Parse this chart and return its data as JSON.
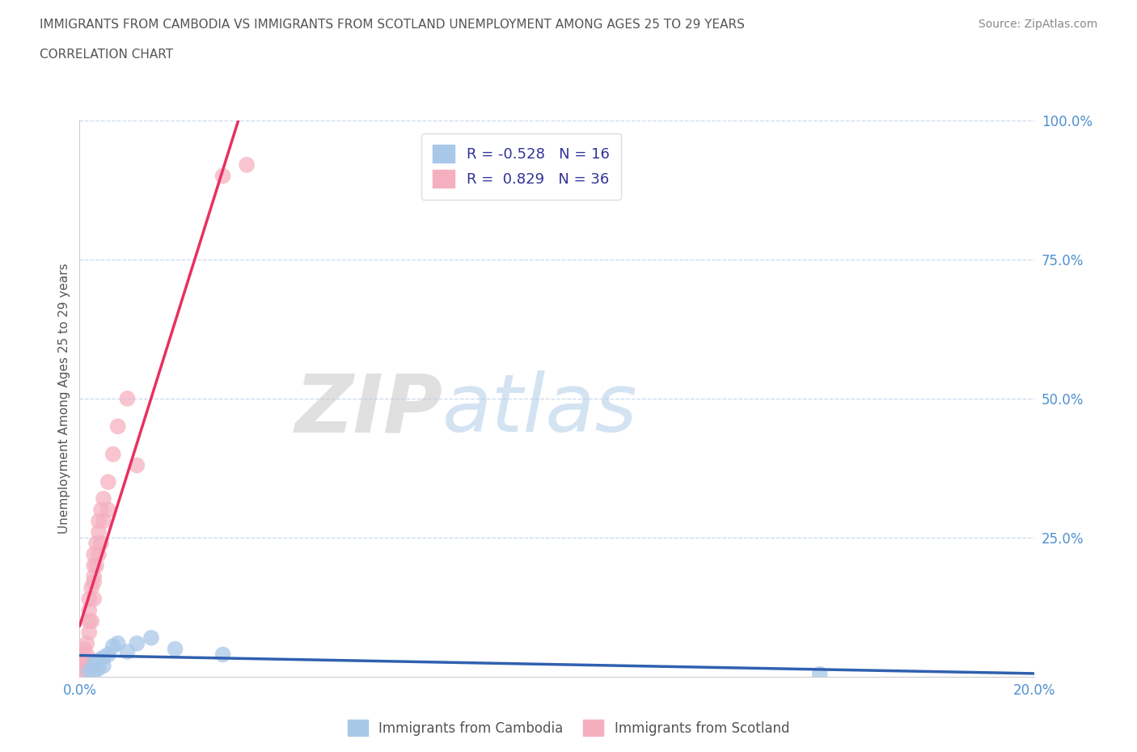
{
  "title_line1": "IMMIGRANTS FROM CAMBODIA VS IMMIGRANTS FROM SCOTLAND UNEMPLOYMENT AMONG AGES 25 TO 29 YEARS",
  "title_line2": "CORRELATION CHART",
  "source": "Source: ZipAtlas.com",
  "ylabel_label": "Unemployment Among Ages 25 to 29 years",
  "xlim": [
    0.0,
    0.2
  ],
  "ylim": [
    0.0,
    1.0
  ],
  "watermark_zip": "ZIP",
  "watermark_atlas": "atlas",
  "cambodia_color": "#a8c8e8",
  "scotland_color": "#f5b0c0",
  "cambodia_line_color": "#3060b0",
  "scotland_line_color": "#e83060",
  "title_color": "#444444",
  "right_axis_color": "#5090d0",
  "bottom_axis_color": "#5090d0",
  "grid_color": "#c8d8ec",
  "legend_text_color": "#333399",
  "cambodia_R": -0.528,
  "cambodia_N": 16,
  "scotland_R": 0.829,
  "scotland_N": 36,
  "cambodia_points_x": [
    0.002,
    0.003,
    0.003,
    0.004,
    0.004,
    0.005,
    0.005,
    0.006,
    0.007,
    0.008,
    0.01,
    0.012,
    0.015,
    0.02,
    0.03,
    0.155
  ],
  "cambodia_points_y": [
    0.01,
    0.008,
    0.025,
    0.015,
    0.03,
    0.02,
    0.035,
    0.04,
    0.055,
    0.06,
    0.045,
    0.06,
    0.07,
    0.05,
    0.04,
    0.005
  ],
  "scotland_points_x": [
    0.0005,
    0.0005,
    0.0008,
    0.001,
    0.001,
    0.001,
    0.0015,
    0.0015,
    0.002,
    0.002,
    0.002,
    0.002,
    0.0025,
    0.0025,
    0.003,
    0.003,
    0.003,
    0.003,
    0.003,
    0.0035,
    0.0035,
    0.004,
    0.004,
    0.004,
    0.0045,
    0.0045,
    0.005,
    0.005,
    0.006,
    0.006,
    0.007,
    0.008,
    0.01,
    0.012,
    0.03,
    0.035
  ],
  "scotland_points_y": [
    0.01,
    0.02,
    0.015,
    0.03,
    0.04,
    0.05,
    0.04,
    0.06,
    0.08,
    0.1,
    0.12,
    0.14,
    0.1,
    0.16,
    0.14,
    0.17,
    0.2,
    0.22,
    0.18,
    0.24,
    0.2,
    0.22,
    0.26,
    0.28,
    0.3,
    0.24,
    0.32,
    0.28,
    0.35,
    0.3,
    0.4,
    0.45,
    0.5,
    0.38,
    0.9,
    0.92
  ]
}
